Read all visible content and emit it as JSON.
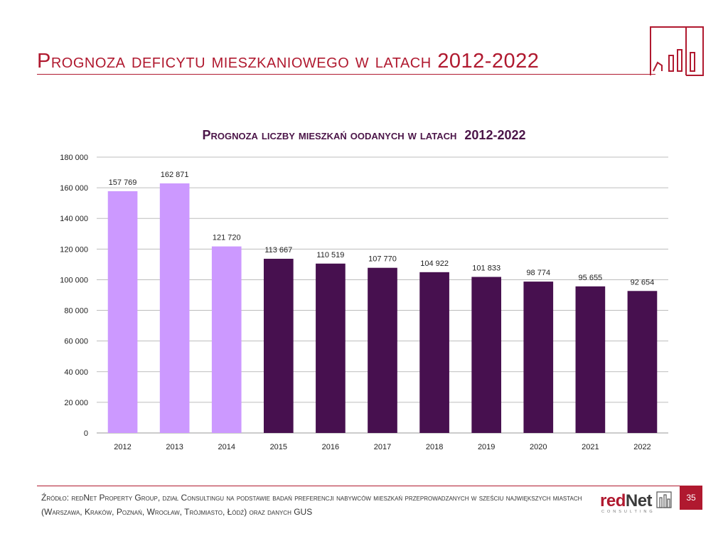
{
  "slide": {
    "title": "Prognoza deficytu mieszkaniowego w latach 2012-2022",
    "page_number": "35",
    "source_text": "Źródło: redNet Property Group, dział Consultingu na podstawie badań preferencji nabywców mieszkań przeprowadzanych w sześciu największych miastach (Warszawa, Kraków, Poznań, Wrocław, Trójmiasto, Łódź) oraz danych GUS",
    "logo_text_red": "red",
    "logo_text_dark": "Net",
    "logo_subtext": "CONSULTING",
    "colors": {
      "accent": "#b0192f",
      "light_bar": "#cc99ff",
      "dark_bar": "#47104f",
      "title": "#4b1548"
    }
  },
  "chart_data": {
    "type": "bar",
    "title": "Prognoza liczby mieszkań oodanych w latach 2012-2022",
    "title_text": "Prognoza liczby mieszkań oodanych w latach",
    "title_years": "2012-2022",
    "xlabel": "",
    "ylabel": "",
    "ylim": [
      0,
      180000
    ],
    "yticks": [
      0,
      20000,
      40000,
      60000,
      80000,
      100000,
      120000,
      140000,
      160000,
      180000
    ],
    "ytick_labels": [
      "0",
      "20 000",
      "40 000",
      "60 000",
      "80 000",
      "100 000",
      "120 000",
      "140 000",
      "160 000",
      "180 000"
    ],
    "grid": true,
    "categories": [
      "2012",
      "2013",
      "2014",
      "2015",
      "2016",
      "2017",
      "2018",
      "2019",
      "2020",
      "2021",
      "2022"
    ],
    "values": [
      157769,
      162871,
      121720,
      113667,
      110519,
      107770,
      104922,
      101833,
      98774,
      95655,
      92654
    ],
    "value_labels": [
      "157 769",
      "162 871",
      "121 720",
      "113 667",
      "110 519",
      "107 770",
      "104 922",
      "101 833",
      "98 774",
      "95 655",
      "92 654"
    ],
    "bar_colors": [
      "#cc99ff",
      "#cc99ff",
      "#cc99ff",
      "#47104f",
      "#47104f",
      "#47104f",
      "#47104f",
      "#47104f",
      "#47104f",
      "#47104f",
      "#47104f"
    ]
  }
}
